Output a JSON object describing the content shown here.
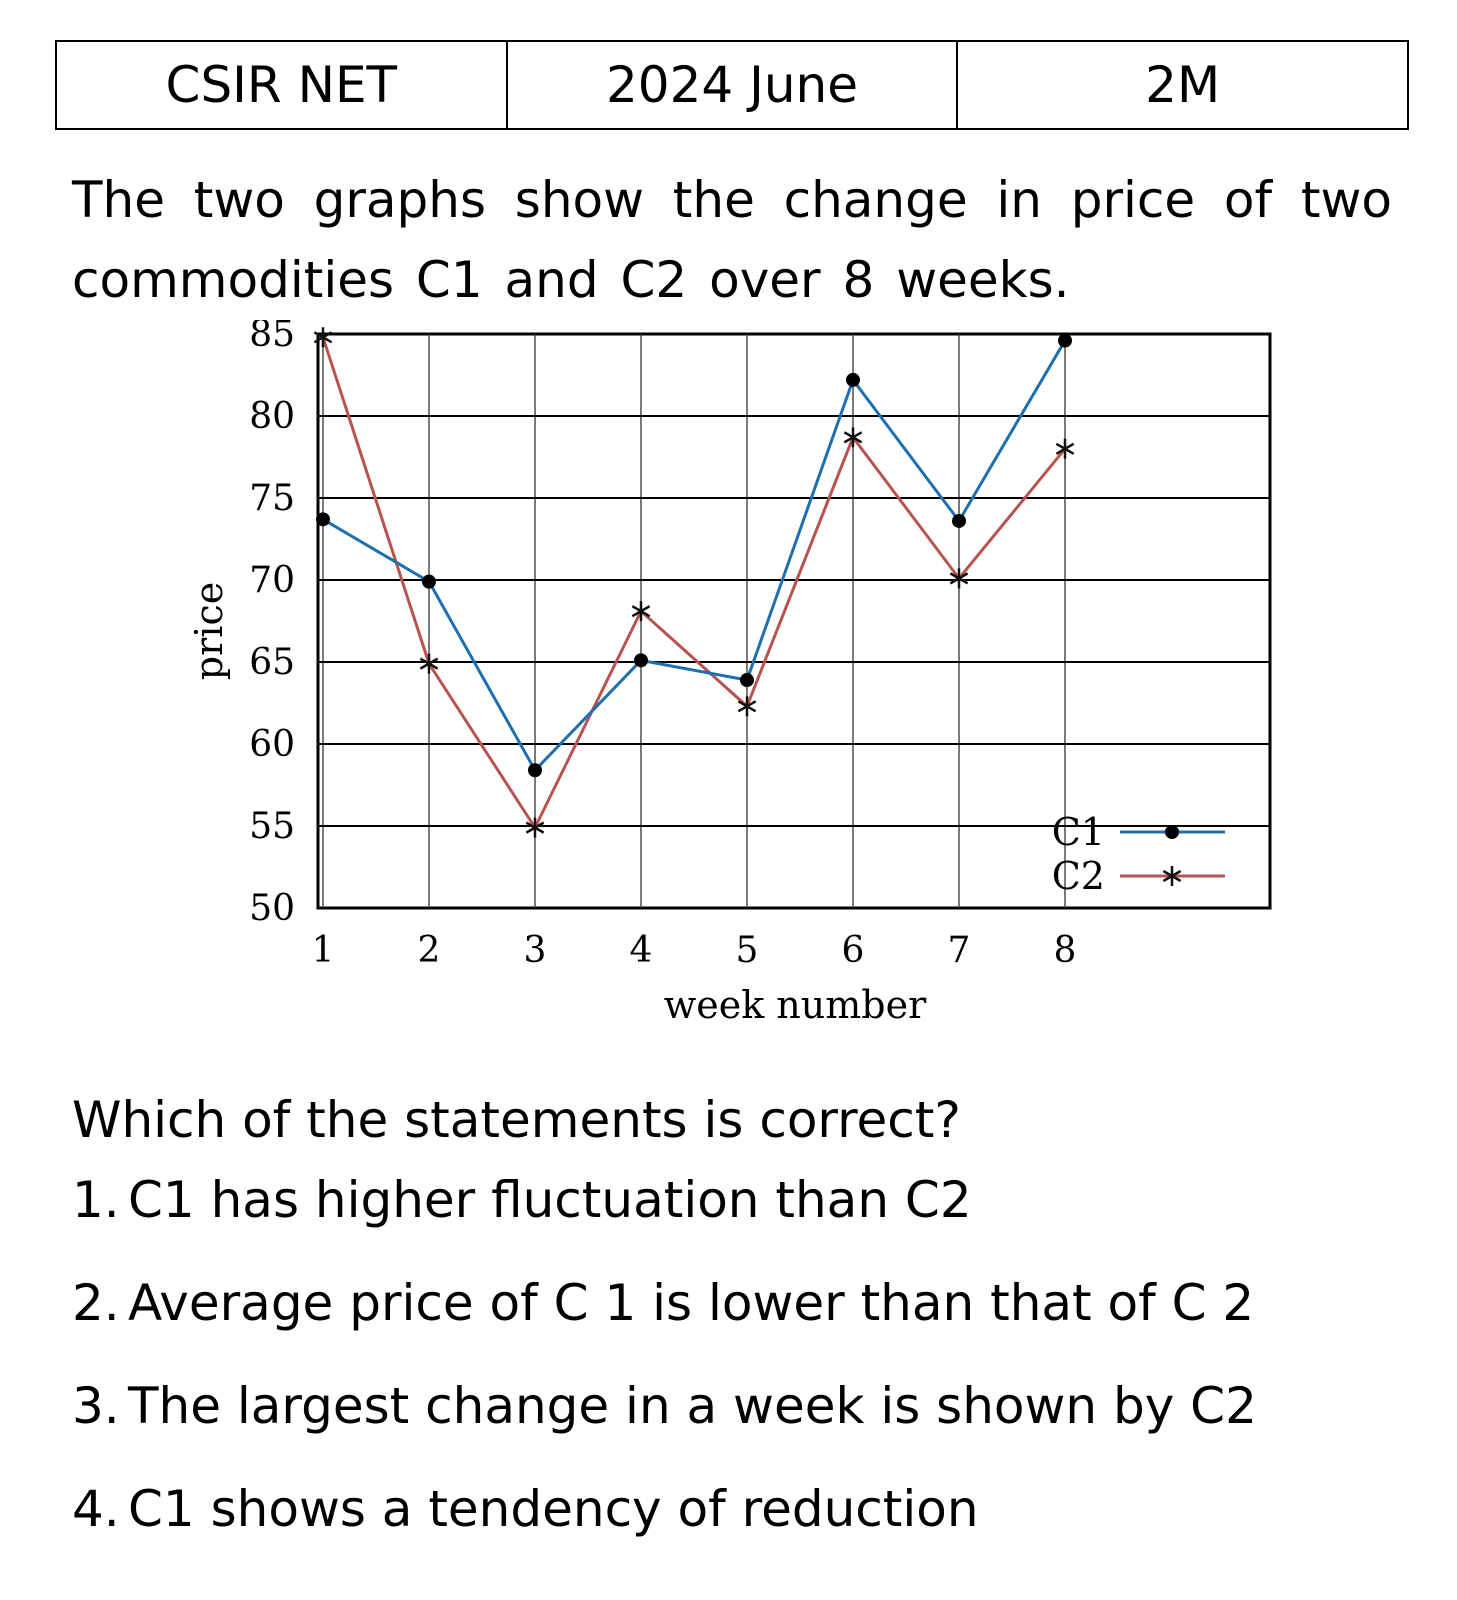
{
  "header": {
    "exam": "CSIR NET",
    "session": "2024 June",
    "marks": "2M"
  },
  "question": {
    "intro": "The two graphs show the change in price of two commodities C1 and C2 over 8 weeks.",
    "prompt": "Which of the statements is correct?",
    "options": [
      {
        "num": "1.",
        "text": "C1 has higher fluctuation than C2"
      },
      {
        "num": "2.",
        "text": "Average price of C 1 is lower than that of C 2"
      },
      {
        "num": "3.",
        "text": "The largest change in a week is shown by C2"
      },
      {
        "num": "4.",
        "text": "C1 shows a tendency of reduction"
      }
    ]
  },
  "chart_data": {
    "type": "line",
    "xlabel": "week number",
    "ylabel": "price",
    "x": [
      1,
      2,
      3,
      4,
      5,
      6,
      7,
      8
    ],
    "xlim": [
      0,
      9
    ],
    "ylim": [
      50,
      85
    ],
    "yticks": [
      50,
      55,
      60,
      65,
      70,
      75,
      80,
      85
    ],
    "grid": true,
    "legend_position": "bottom-right",
    "series": [
      {
        "name": "C1",
        "marker": "dot",
        "color": "#1f6fb0",
        "values": [
          73.7,
          69.9,
          58.4,
          65.1,
          63.9,
          82.2,
          73.6,
          84.6
        ]
      },
      {
        "name": "C2",
        "marker": "asterisk",
        "color": "#b85450",
        "values": [
          84.8,
          64.9,
          54.9,
          68.1,
          62.3,
          78.7,
          70.1,
          78.0
        ]
      }
    ]
  }
}
